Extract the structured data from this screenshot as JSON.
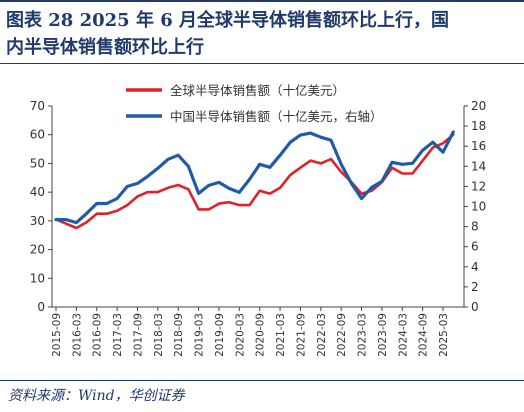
{
  "figure": {
    "title_line1": "图表 28   2025 年 6 月全球半导体销售额环比上行，国",
    "title_line2": "内半导体销售额环比上行",
    "source": "资料来源：Wind，华创证券"
  },
  "chart_data": {
    "type": "line",
    "legend_position": "top-center",
    "grid": false,
    "x_tick_labels": [
      "2015-09",
      "2016-03",
      "2016-09",
      "2017-03",
      "2017-09",
      "2018-03",
      "2018-09",
      "2019-03",
      "2019-09",
      "2020-03",
      "2020-09",
      "2021-03",
      "2021-09",
      "2022-03",
      "2022-09",
      "2023-03",
      "2023-09",
      "2024-03",
      "2024-09",
      "2025-03"
    ],
    "y_left": {
      "min": 0,
      "max": 70,
      "ticks": [
        0,
        10,
        20,
        30,
        40,
        50,
        60,
        70
      ]
    },
    "y_right": {
      "min": 0,
      "max": 20,
      "ticks": [
        0,
        2,
        4,
        6,
        8,
        10,
        12,
        14,
        16,
        18,
        20
      ]
    },
    "colors": {
      "global": "#e0202a",
      "china": "#1f5ba8"
    },
    "series": [
      {
        "name": "全球半导体销售额（十亿美元）",
        "axis": "left",
        "color": "#e0202a",
        "x": [
          "2015-09",
          "2015-12",
          "2016-03",
          "2016-06",
          "2016-09",
          "2016-12",
          "2017-03",
          "2017-06",
          "2017-09",
          "2017-12",
          "2018-03",
          "2018-06",
          "2018-09",
          "2018-12",
          "2019-03",
          "2019-06",
          "2019-09",
          "2019-12",
          "2020-03",
          "2020-06",
          "2020-09",
          "2020-12",
          "2021-03",
          "2021-06",
          "2021-09",
          "2021-12",
          "2022-03",
          "2022-06",
          "2022-09",
          "2022-12",
          "2023-03",
          "2023-06",
          "2023-09",
          "2023-12",
          "2024-03",
          "2024-06",
          "2024-09",
          "2024-12",
          "2025-03",
          "2025-06"
        ],
        "values": [
          30.5,
          29,
          27.5,
          29.5,
          32.5,
          32.5,
          33.5,
          35.5,
          38.5,
          40,
          40,
          41.5,
          42.5,
          41,
          34,
          34,
          36,
          36.5,
          35.5,
          35.5,
          40.5,
          39.5,
          41.5,
          46,
          48.5,
          51,
          50,
          51.5,
          47,
          43.5,
          39.5,
          40.5,
          43.5,
          48.5,
          46.5,
          46.5,
          51,
          55.5,
          57,
          60
        ]
      },
      {
        "name": "中国半导体销售额（十亿美元，右轴）",
        "axis": "right",
        "color": "#1f5ba8",
        "x": [
          "2015-09",
          "2015-12",
          "2016-03",
          "2016-06",
          "2016-09",
          "2016-12",
          "2017-03",
          "2017-06",
          "2017-09",
          "2017-12",
          "2018-03",
          "2018-06",
          "2018-09",
          "2018-12",
          "2019-03",
          "2019-06",
          "2019-09",
          "2019-12",
          "2020-03",
          "2020-06",
          "2020-09",
          "2020-12",
          "2021-03",
          "2021-06",
          "2021-09",
          "2021-12",
          "2022-03",
          "2022-06",
          "2022-09",
          "2022-12",
          "2023-03",
          "2023-06",
          "2023-09",
          "2023-12",
          "2024-03",
          "2024-06",
          "2024-09",
          "2024-12",
          "2025-03",
          "2025-06"
        ],
        "values": [
          8.7,
          8.7,
          8.4,
          9.3,
          10.3,
          10.3,
          10.8,
          12,
          12.3,
          13,
          13.8,
          14.7,
          15.1,
          14,
          11.3,
          12.1,
          12.4,
          11.8,
          11.4,
          12.7,
          14.2,
          13.9,
          15.1,
          16.4,
          17.1,
          17.3,
          16.9,
          16.6,
          14.2,
          12.3,
          10.8,
          11.9,
          12.5,
          14.4,
          14.2,
          14.3,
          15.6,
          16.4,
          15.4,
          17.4
        ]
      }
    ]
  }
}
